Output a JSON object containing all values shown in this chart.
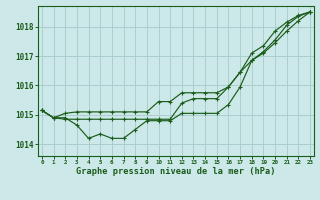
{
  "background_color": "#cce8e8",
  "grid_color": "#aacece",
  "line_color": "#1a5c1a",
  "title": "Graphe pression niveau de la mer (hPa)",
  "hours": [
    0,
    1,
    2,
    3,
    4,
    5,
    6,
    7,
    8,
    9,
    10,
    11,
    12,
    13,
    14,
    15,
    16,
    17,
    18,
    19,
    20,
    21,
    22,
    23
  ],
  "ylim": [
    1013.6,
    1018.7
  ],
  "yticks": [
    1014,
    1015,
    1016,
    1017,
    1018
  ],
  "series1": [
    1015.15,
    1014.9,
    1014.9,
    1014.65,
    1014.2,
    1014.35,
    1014.2,
    1014.2,
    1014.5,
    1014.8,
    1014.8,
    1014.8,
    1015.05,
    1015.05,
    1015.05,
    1015.05,
    1015.35,
    1015.95,
    1016.85,
    1017.15,
    1017.55,
    1018.05,
    1018.35,
    1018.5
  ],
  "series2": [
    1015.15,
    1014.9,
    1014.85,
    1014.85,
    1014.85,
    1014.85,
    1014.85,
    1014.85,
    1014.85,
    1014.85,
    1014.85,
    1014.85,
    1015.4,
    1015.55,
    1015.55,
    1015.55,
    1015.95,
    1016.45,
    1017.1,
    1017.35,
    1017.85,
    1018.15,
    1018.38,
    1018.5
  ],
  "series3": [
    1015.15,
    1014.9,
    1015.05,
    1015.1,
    1015.1,
    1015.1,
    1015.1,
    1015.1,
    1015.1,
    1015.1,
    1015.45,
    1015.45,
    1015.75,
    1015.75,
    1015.75,
    1015.75,
    1015.95,
    1016.45,
    1016.85,
    1017.1,
    1017.45,
    1017.85,
    1018.2,
    1018.5
  ]
}
